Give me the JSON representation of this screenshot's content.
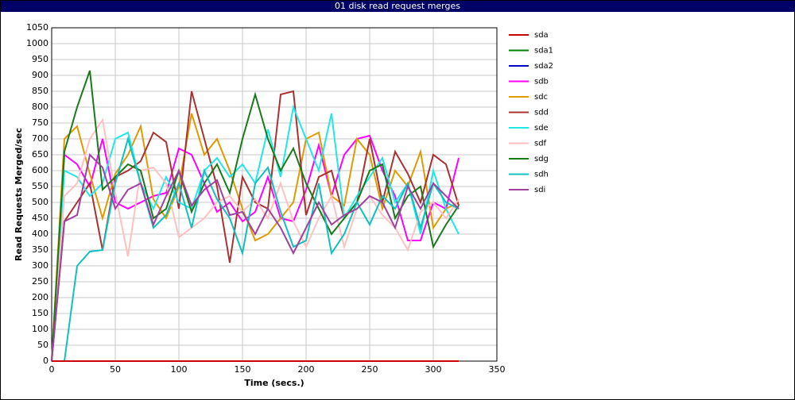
{
  "chart_data": {
    "type": "line",
    "title": "01 disk read request merges",
    "xlabel": "Time (secs.)",
    "ylabel": "Read Requests Merged/sec",
    "x": [
      0,
      10,
      20,
      30,
      40,
      50,
      60,
      70,
      80,
      90,
      100,
      110,
      120,
      130,
      140,
      150,
      160,
      170,
      180,
      190,
      200,
      210,
      220,
      230,
      240,
      250,
      260,
      270,
      280,
      290,
      300,
      310,
      320
    ],
    "xlim": [
      0,
      350
    ],
    "xticks": [
      0,
      50,
      100,
      150,
      200,
      250,
      300,
      350
    ],
    "ylim": [
      0,
      1050
    ],
    "yticks": [
      0,
      50,
      100,
      150,
      200,
      250,
      300,
      350,
      400,
      450,
      500,
      550,
      600,
      650,
      700,
      750,
      800,
      850,
      900,
      950,
      1000,
      1050
    ],
    "grid": true,
    "legend": "right",
    "series": [
      {
        "name": "sda",
        "color": "#cc0000",
        "values": [
          0,
          0,
          0,
          0,
          0,
          0,
          0,
          0,
          0,
          0,
          0,
          0,
          0,
          0,
          0,
          0,
          0,
          0,
          0,
          0,
          0,
          0,
          0,
          0,
          0,
          0,
          0,
          0,
          0,
          0,
          0,
          0,
          0
        ]
      },
      {
        "name": "sda1",
        "color": "#008000",
        "values": [
          0,
          0,
          0,
          0,
          0,
          0,
          0,
          0,
          0,
          0,
          0,
          0,
          0,
          0,
          0,
          0,
          0,
          0,
          0,
          0,
          0,
          0,
          0,
          0,
          0,
          0,
          0,
          0,
          0,
          0,
          0,
          0,
          0
        ]
      },
      {
        "name": "sda2",
        "color": "#0000cc",
        "values": [
          0,
          0,
          0,
          0,
          0,
          0,
          0,
          0,
          0,
          0,
          0,
          0,
          0,
          0,
          0,
          0,
          0,
          0,
          0,
          0,
          0,
          0,
          0,
          0,
          0,
          0,
          0,
          0,
          0,
          0,
          0,
          0,
          0
        ]
      },
      {
        "name": "sdb",
        "color": "#ff00ff",
        "values": [
          0,
          650,
          620,
          550,
          700,
          500,
          480,
          500,
          520,
          530,
          670,
          650,
          560,
          470,
          500,
          440,
          470,
          580,
          450,
          440,
          540,
          680,
          520,
          650,
          700,
          710,
          600,
          520,
          380,
          380,
          500,
          480,
          640
        ]
      },
      {
        "name": "sdc",
        "color": "#e09a00",
        "values": [
          0,
          700,
          740,
          590,
          450,
          590,
          650,
          740,
          510,
          450,
          550,
          780,
          650,
          700,
          600,
          480,
          380,
          400,
          450,
          500,
          700,
          720,
          520,
          490,
          700,
          650,
          480,
          600,
          550,
          660,
          420,
          480,
          500
        ]
      },
      {
        "name": "sdd",
        "color": "#a83232",
        "values": [
          0,
          440,
          500,
          560,
          350,
          580,
          600,
          630,
          720,
          690,
          480,
          850,
          700,
          550,
          310,
          580,
          500,
          480,
          840,
          850,
          460,
          580,
          600,
          450,
          500,
          700,
          500,
          660,
          590,
          500,
          650,
          620,
          490
        ]
      },
      {
        "name": "sde",
        "color": "#20e8e8",
        "values": [
          0,
          600,
          580,
          520,
          560,
          700,
          720,
          560,
          480,
          580,
          500,
          480,
          600,
          640,
          580,
          620,
          560,
          730,
          580,
          800,
          700,
          600,
          780,
          450,
          520,
          580,
          640,
          500,
          560,
          400,
          600,
          480,
          400
        ]
      },
      {
        "name": "sdf",
        "color": "#ffc0c0",
        "values": [
          0,
          520,
          560,
          700,
          760,
          530,
          330,
          600,
          610,
          560,
          390,
          420,
          450,
          500,
          520,
          470,
          510,
          450,
          560,
          440,
          360,
          450,
          520,
          360,
          480,
          520,
          460,
          420,
          350,
          470,
          500,
          450,
          510
        ]
      },
      {
        "name": "sdg",
        "color": "#1a7a1a",
        "values": [
          0,
          660,
          800,
          915,
          540,
          580,
          620,
          600,
          450,
          480,
          600,
          470,
          560,
          620,
          530,
          700,
          840,
          700,
          600,
          670,
          560,
          480,
          400,
          450,
          500,
          600,
          620,
          450,
          520,
          550,
          360,
          430,
          490
        ]
      },
      {
        "name": "sdh",
        "color": "#10c0c0",
        "values": [
          0,
          0,
          300,
          345,
          350,
          560,
          700,
          560,
          420,
          460,
          560,
          420,
          600,
          510,
          450,
          340,
          560,
          610,
          470,
          360,
          380,
          560,
          340,
          400,
          500,
          430,
          520,
          480,
          560,
          420,
          560,
          500,
          480
        ]
      },
      {
        "name": "sdi",
        "color": "#a040a0",
        "values": [
          0,
          440,
          460,
          650,
          610,
          480,
          540,
          560,
          430,
          520,
          600,
          490,
          540,
          570,
          460,
          470,
          400,
          480,
          420,
          340,
          420,
          500,
          430,
          460,
          480,
          520,
          500,
          420,
          550,
          480,
          560,
          520,
          480
        ]
      }
    ]
  }
}
